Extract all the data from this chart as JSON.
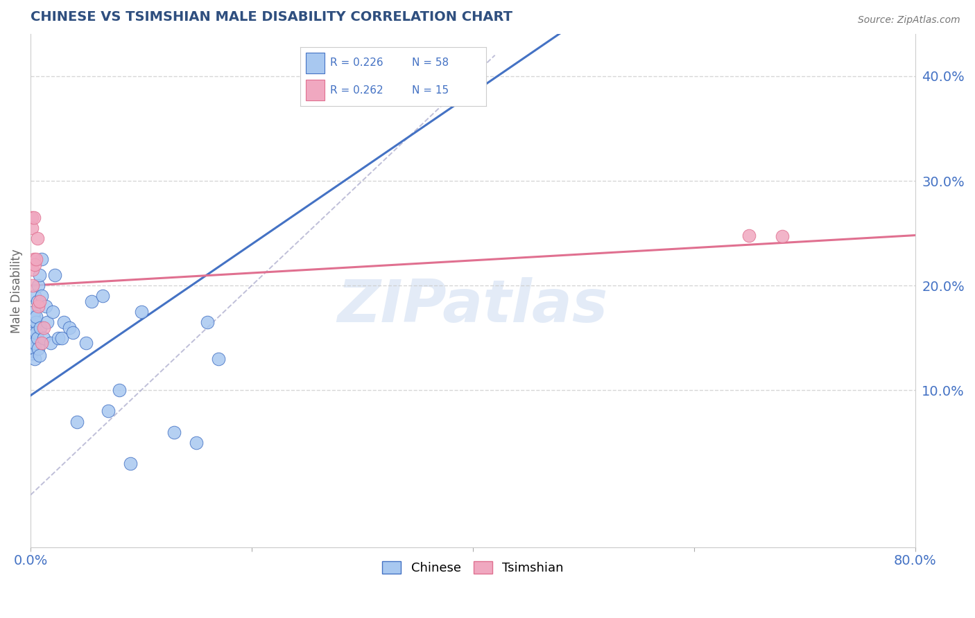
{
  "title": "CHINESE VS TSIMSHIAN MALE DISABILITY CORRELATION CHART",
  "source": "Source: ZipAtlas.com",
  "ylabel": "Male Disability",
  "xlim": [
    0.0,
    0.8
  ],
  "ylim": [
    -0.05,
    0.44
  ],
  "xtick_positions": [
    0.0,
    0.2,
    0.4,
    0.6,
    0.8
  ],
  "xtick_labels": [
    "0.0%",
    "",
    "",
    "",
    "80.0%"
  ],
  "ytick_right_positions": [
    0.1,
    0.2,
    0.3,
    0.4
  ],
  "ytick_right_labels": [
    "10.0%",
    "20.0%",
    "30.0%",
    "40.0%"
  ],
  "chinese_color": "#a8c8f0",
  "tsimshian_color": "#f0a8c0",
  "trend_chinese_color": "#4472c4",
  "trend_tsimshian_color": "#e07090",
  "tick_color": "#4472c4",
  "grid_color": "#cccccc",
  "background_color": "#ffffff",
  "watermark": "ZIPatlas",
  "watermark_color": "#c8d8f0",
  "legend_box_border": "#cccccc",
  "ref_line_color": "#aaaacc",
  "chinese_x": [
    0.001,
    0.001,
    0.001,
    0.001,
    0.001,
    0.001,
    0.001,
    0.001,
    0.002,
    0.002,
    0.002,
    0.002,
    0.002,
    0.002,
    0.003,
    0.003,
    0.003,
    0.003,
    0.003,
    0.004,
    0.004,
    0.004,
    0.004,
    0.005,
    0.005,
    0.005,
    0.006,
    0.006,
    0.007,
    0.007,
    0.008,
    0.008,
    0.009,
    0.01,
    0.01,
    0.012,
    0.014,
    0.015,
    0.018,
    0.02,
    0.022,
    0.025,
    0.028,
    0.03,
    0.035,
    0.038,
    0.042,
    0.05,
    0.055,
    0.065,
    0.07,
    0.08,
    0.09,
    0.1,
    0.13,
    0.15,
    0.16,
    0.17
  ],
  "chinese_y": [
    0.14,
    0.15,
    0.155,
    0.16,
    0.165,
    0.145,
    0.135,
    0.155,
    0.155,
    0.162,
    0.138,
    0.16,
    0.145,
    0.152,
    0.16,
    0.17,
    0.155,
    0.145,
    0.175,
    0.14,
    0.19,
    0.13,
    0.145,
    0.165,
    0.155,
    0.17,
    0.15,
    0.185,
    0.2,
    0.14,
    0.133,
    0.21,
    0.16,
    0.225,
    0.19,
    0.15,
    0.18,
    0.165,
    0.145,
    0.175,
    0.21,
    0.15,
    0.15,
    0.165,
    0.16,
    0.155,
    0.07,
    0.145,
    0.185,
    0.19,
    0.08,
    0.1,
    0.03,
    0.175,
    0.06,
    0.05,
    0.165,
    0.13
  ],
  "tsimshian_x": [
    0.001,
    0.001,
    0.002,
    0.002,
    0.003,
    0.003,
    0.004,
    0.005,
    0.006,
    0.007,
    0.008,
    0.01,
    0.012,
    0.65,
    0.68
  ],
  "tsimshian_y": [
    0.265,
    0.255,
    0.2,
    0.215,
    0.265,
    0.225,
    0.22,
    0.225,
    0.245,
    0.18,
    0.185,
    0.145,
    0.16,
    0.248,
    0.247
  ],
  "trend_chinese_x0": 0.0,
  "trend_chinese_y0": 0.095,
  "trend_chinese_x1": 0.18,
  "trend_chinese_y1": 0.225,
  "trend_tsimshian_x0": 0.0,
  "trend_tsimshian_y0": 0.2,
  "trend_tsimshian_x1": 0.8,
  "trend_tsimshian_y1": 0.248
}
